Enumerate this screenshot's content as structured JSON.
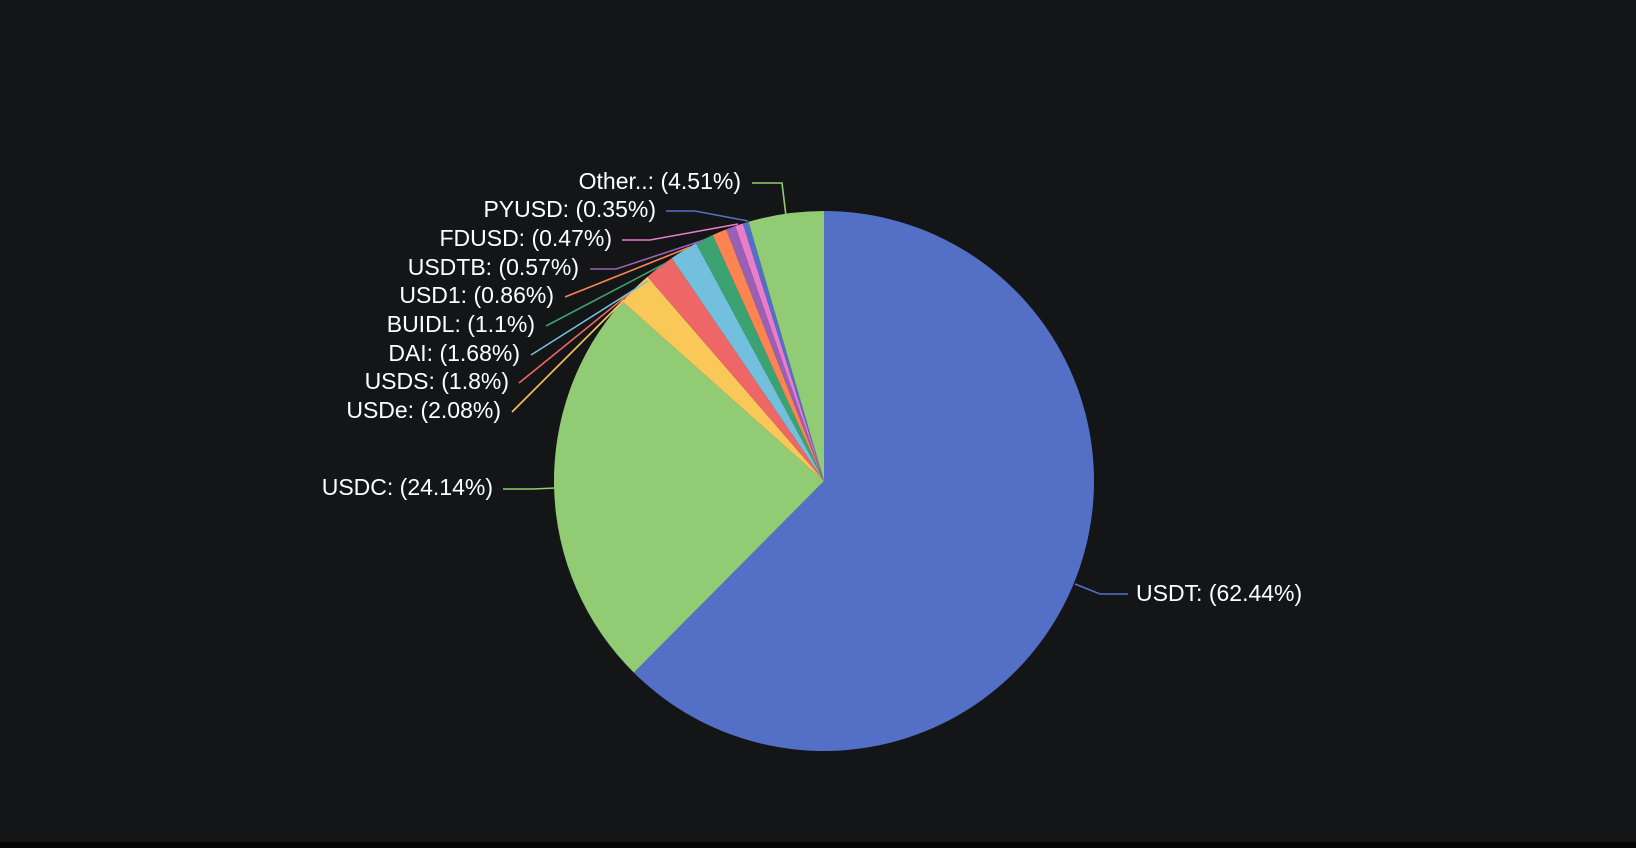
{
  "chart_data": {
    "type": "pie",
    "slices": [
      {
        "name": "USDT",
        "value": 62.44,
        "label": "USDT: (62.44%)",
        "color": "#5470c6"
      },
      {
        "name": "USDC",
        "value": 24.14,
        "label": "USDC: (24.14%)",
        "color": "#91cc75"
      },
      {
        "name": "USDe",
        "value": 2.08,
        "label": "USDe: (2.08%)",
        "color": "#fac858"
      },
      {
        "name": "USDS",
        "value": 1.8,
        "label": "USDS: (1.8%)",
        "color": "#ee6666"
      },
      {
        "name": "DAI",
        "value": 1.68,
        "label": "DAI: (1.68%)",
        "color": "#73c0de"
      },
      {
        "name": "BUIDL",
        "value": 1.1,
        "label": "BUIDL: (1.1%)",
        "color": "#3ba272"
      },
      {
        "name": "USD1",
        "value": 0.86,
        "label": "USD1: (0.86%)",
        "color": "#fc8452"
      },
      {
        "name": "USDTB",
        "value": 0.57,
        "label": "USDTB: (0.57%)",
        "color": "#9a60b4"
      },
      {
        "name": "FDUSD",
        "value": 0.47,
        "label": "FDUSD: (0.47%)",
        "color": "#ea7ccc"
      },
      {
        "name": "PYUSD",
        "value": 0.35,
        "label": "PYUSD: (0.35%)",
        "color": "#5470c6"
      },
      {
        "name": "Other..",
        "value": 4.51,
        "label": "Other..: (4.51%)",
        "color": "#91cc75"
      }
    ],
    "start": "12 o'clock",
    "direction": "clockwise",
    "legend": "none",
    "labels": "outside with leader lines"
  },
  "colors": {
    "background": "#141517",
    "label_text": "#ffffff"
  }
}
